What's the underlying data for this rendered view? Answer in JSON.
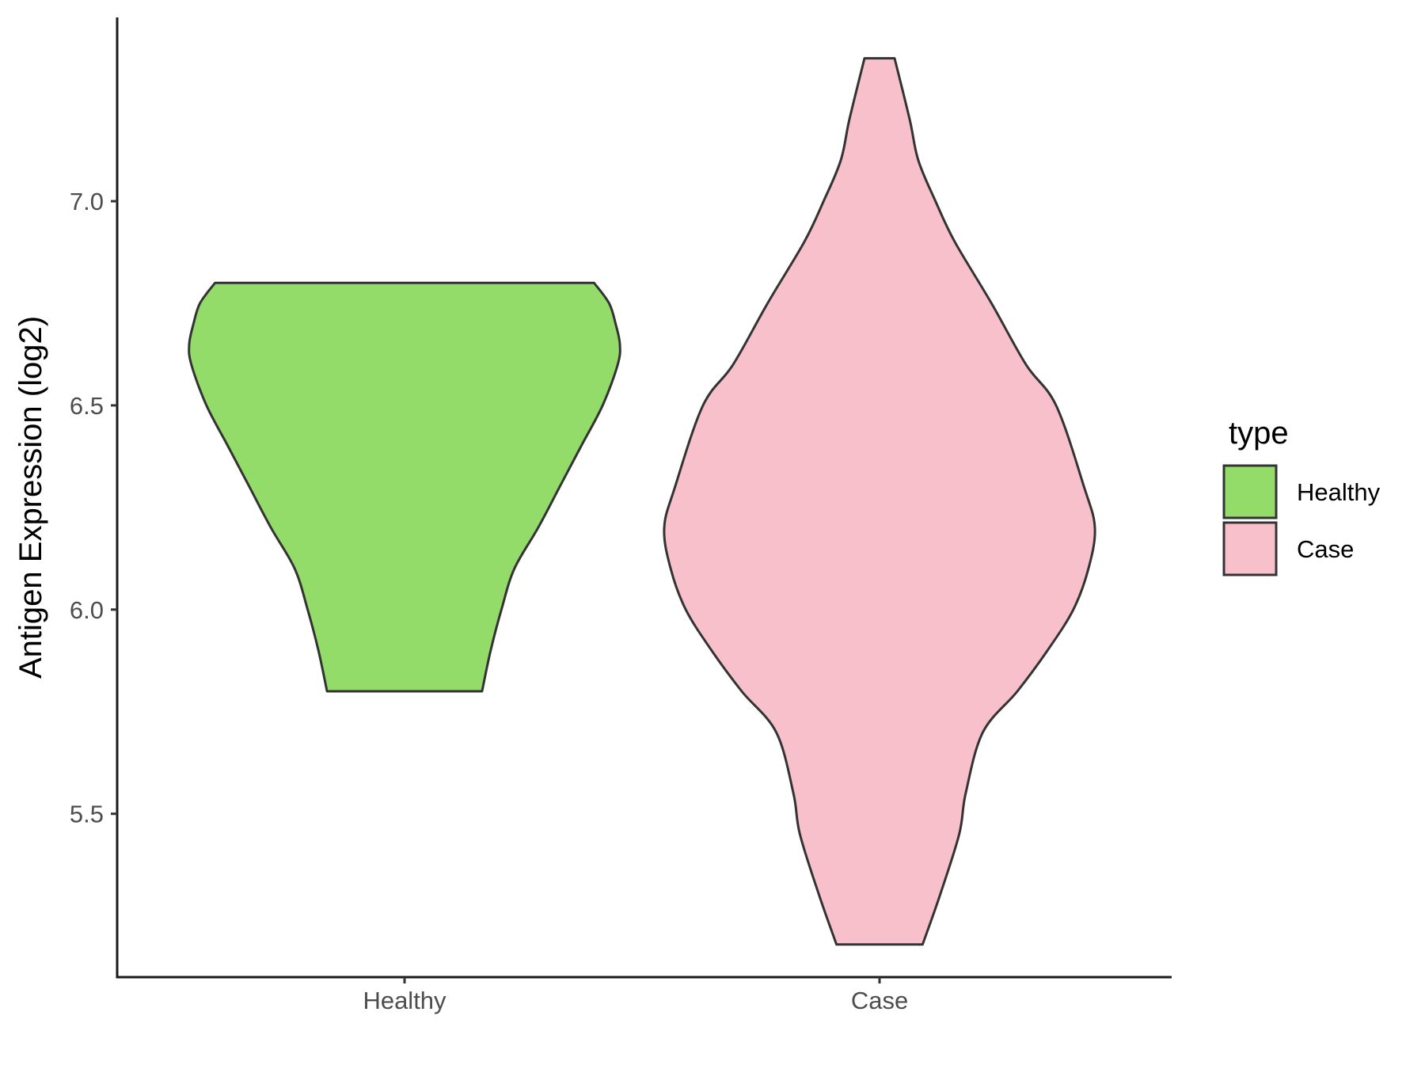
{
  "chart_data": {
    "type": "violin",
    "title": "",
    "xlabel": "",
    "ylabel": "Antigen Expression (log2)",
    "ylim": [
      5.1,
      7.45
    ],
    "yticks": [
      "5.5",
      "6.0",
      "6.5",
      "7.0"
    ],
    "categories": [
      "Healthy",
      "Case"
    ],
    "grid": false,
    "legend": {
      "title": "type",
      "position": "right",
      "entries": [
        "Healthy",
        "Case"
      ]
    },
    "series": [
      {
        "name": "Healthy",
        "color": "#93dc6a",
        "min": 5.8,
        "max": 6.8,
        "density_profile": [
          [
            5.8,
            0.36
          ],
          [
            5.9,
            0.4
          ],
          [
            6.0,
            0.45
          ],
          [
            6.1,
            0.51
          ],
          [
            6.2,
            0.62
          ],
          [
            6.3,
            0.72
          ],
          [
            6.4,
            0.82
          ],
          [
            6.5,
            0.92
          ],
          [
            6.6,
            0.99
          ],
          [
            6.65,
            1.0
          ],
          [
            6.7,
            0.98
          ],
          [
            6.75,
            0.95
          ],
          [
            6.8,
            0.88
          ]
        ]
      },
      {
        "name": "Case",
        "color": "#f7c0cb",
        "min": 5.18,
        "max": 7.35,
        "density_profile": [
          [
            5.18,
            0.2
          ],
          [
            5.3,
            0.28
          ],
          [
            5.45,
            0.37
          ],
          [
            5.55,
            0.4
          ],
          [
            5.7,
            0.48
          ],
          [
            5.8,
            0.64
          ],
          [
            5.9,
            0.78
          ],
          [
            6.0,
            0.9
          ],
          [
            6.1,
            0.97
          ],
          [
            6.2,
            1.0
          ],
          [
            6.3,
            0.95
          ],
          [
            6.5,
            0.82
          ],
          [
            6.6,
            0.68
          ],
          [
            6.75,
            0.52
          ],
          [
            6.9,
            0.35
          ],
          [
            7.0,
            0.26
          ],
          [
            7.1,
            0.18
          ],
          [
            7.2,
            0.14
          ],
          [
            7.35,
            0.07
          ]
        ]
      }
    ]
  }
}
